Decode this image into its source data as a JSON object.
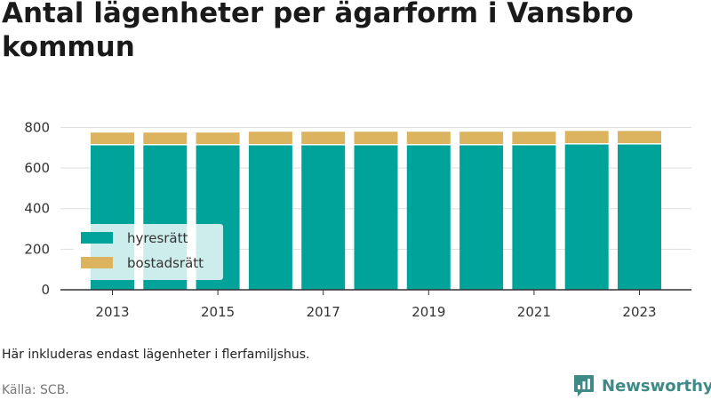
{
  "title": "Antal lägenheter per ägarform i Vansbro kommun",
  "note": "Här inkluderas endast lägenheter i flerfamiljshus.",
  "source": "Källa: SCB.",
  "brand": {
    "name": "Newsworthy",
    "icon": "newsworthy-logo-icon",
    "color": "#3d8a87"
  },
  "chart_data": {
    "type": "bar",
    "stacked": true,
    "categories": [
      "2013",
      "2014",
      "2015",
      "2016",
      "2017",
      "2018",
      "2019",
      "2020",
      "2021",
      "2022",
      "2023"
    ],
    "x_tick_labels": [
      "2013",
      "2015",
      "2017",
      "2019",
      "2021",
      "2023"
    ],
    "series": [
      {
        "name": "hyresrätt",
        "color": "#00a39a",
        "values": [
          712,
          712,
          712,
          712,
          712,
          712,
          712,
          712,
          712,
          716,
          716
        ]
      },
      {
        "name": "bostadsrätt",
        "color": "#dcb35f",
        "values": [
          63,
          63,
          63,
          67,
          67,
          67,
          67,
          67,
          67,
          67,
          67
        ]
      }
    ],
    "y_ticks": [
      0,
      200,
      400,
      600,
      800
    ],
    "ylim": [
      0,
      850
    ],
    "grid": true,
    "legend_position": "bottom-left",
    "xlabel": "",
    "ylabel": ""
  }
}
